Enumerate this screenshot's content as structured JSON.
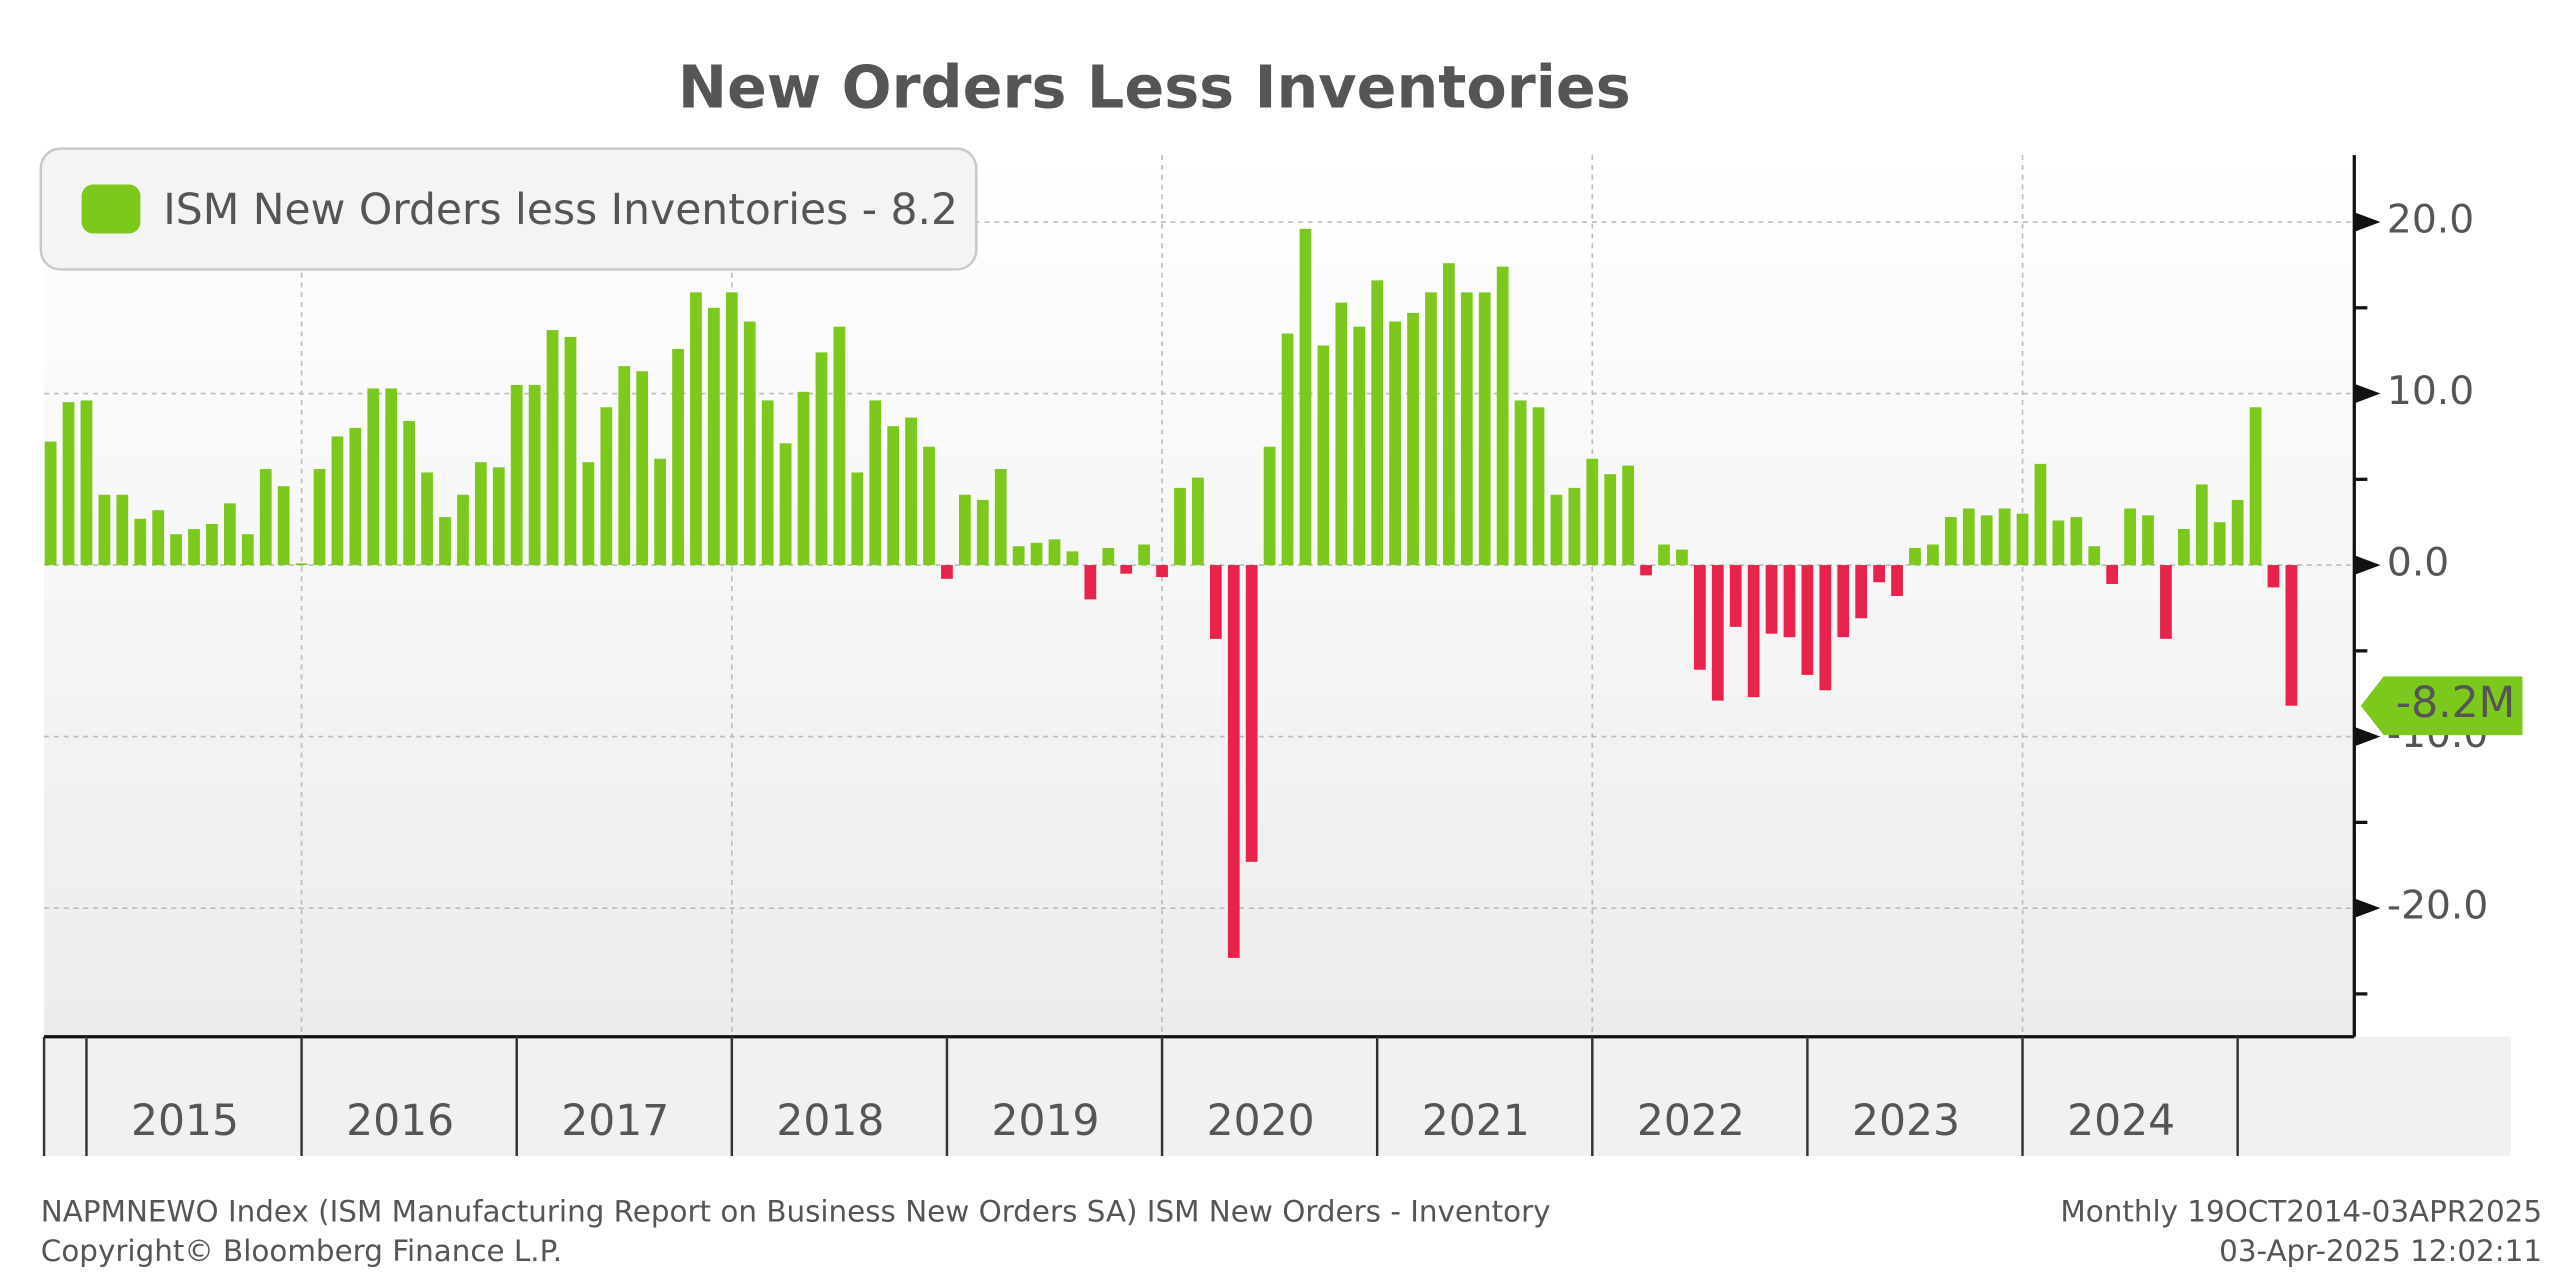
{
  "chart_data": {
    "type": "bar",
    "title": "New Orders Less Inventories",
    "series": [
      {
        "name": "ISM New Orders less Inventories - 8.2",
        "color": "#7cc81c",
        "negative_color": "#e5234b",
        "values": [
          7.2,
          9.5,
          9.6,
          4.1,
          4.1,
          2.7,
          3.2,
          1.8,
          2.1,
          2.4,
          3.6,
          1.8,
          5.6,
          4.6,
          0.1,
          5.6,
          7.5,
          8.0,
          10.3,
          10.3,
          8.4,
          5.4,
          2.8,
          4.1,
          6.0,
          5.7,
          10.5,
          10.5,
          13.7,
          13.3,
          6.0,
          9.2,
          11.6,
          11.3,
          6.2,
          12.6,
          15.9,
          15.0,
          15.9,
          14.2,
          9.6,
          7.1,
          10.1,
          12.4,
          13.9,
          5.4,
          9.6,
          8.1,
          8.6,
          6.9,
          -0.8,
          4.1,
          3.8,
          5.6,
          1.1,
          1.3,
          1.5,
          0.8,
          -2.0,
          1.0,
          -0.5,
          1.2,
          -0.7,
          4.5,
          5.1,
          -4.3,
          -22.9,
          -17.3,
          6.9,
          13.5,
          19.6,
          12.8,
          15.3,
          13.9,
          16.6,
          14.2,
          14.7,
          15.9,
          17.6,
          15.9,
          15.9,
          17.4,
          9.6,
          9.2,
          4.1,
          4.5,
          6.2,
          5.3,
          5.8,
          -0.6,
          1.2,
          0.9,
          -6.1,
          -7.9,
          -3.6,
          -7.7,
          -4.0,
          -4.2,
          -6.4,
          -7.3,
          -4.2,
          -3.1,
          -1.0,
          -1.8,
          1.0,
          1.2,
          2.8,
          3.3,
          2.9,
          3.3,
          3.0,
          5.9,
          2.6,
          2.8,
          1.1,
          -1.1,
          3.3,
          2.9,
          -4.3,
          2.1,
          4.7,
          2.5,
          3.8,
          9.2,
          -1.3,
          -8.2
        ]
      }
    ],
    "year_labels": [
      "2015",
      "2016",
      "2017",
      "2018",
      "2019",
      "2020",
      "2021",
      "2022",
      "2023",
      "2024"
    ],
    "ylim": [
      -27.5,
      23.9
    ],
    "yticks": [
      {
        "value": 20,
        "label": "20.0"
      },
      {
        "value": 10,
        "label": "10.0"
      },
      {
        "value": 0,
        "label": "0.0"
      },
      {
        "value": -10,
        "label": "-10.0"
      },
      {
        "value": -20,
        "label": "-20.0"
      }
    ],
    "minor_yticks": [
      15,
      5,
      -5,
      -15,
      -25
    ],
    "last_value_label": "-8.2M",
    "grid": true,
    "legend": "top-left",
    "footer_left": [
      "NAPMNEWO Index (ISM Manufacturing Report on Business New Orders SA) ISM New Orders - Inventory",
      "Copyright© Bloomberg Finance L.P."
    ],
    "footer_right": [
      "Monthly 19OCT2014-03APR2025",
      "03-Apr-2025 12:02:11"
    ]
  }
}
